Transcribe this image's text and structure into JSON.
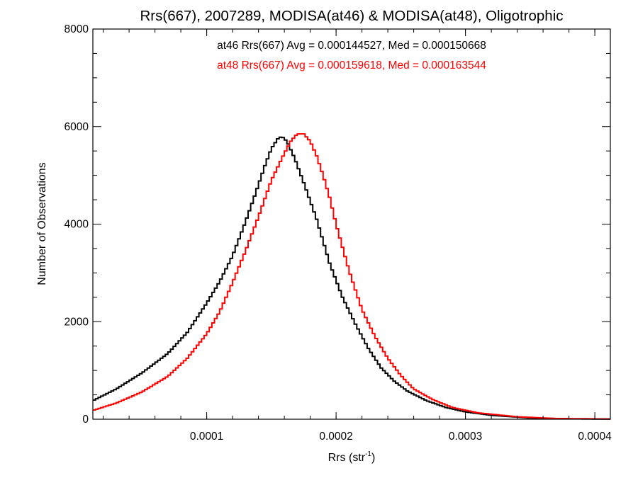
{
  "chart_data": {
    "type": "step-histogram",
    "title": "Rrs(667), 2007289, MODISA(at46) & MODISA(at48), Oligotrophic",
    "xlabel_main": "Rrs (str",
    "xlabel_sup": "-1",
    "xlabel_end": ")",
    "ylabel": "Number of Observations",
    "xlim": [
      1.2e-05,
      0.000412
    ],
    "ylim": [
      0,
      8000
    ],
    "x_ticks": [
      0.0001,
      0.0002,
      0.0003,
      0.0004
    ],
    "x_tick_labels": [
      "0.0001",
      "0.0002",
      "0.0003",
      "0.0004"
    ],
    "y_ticks": [
      0,
      2000,
      4000,
      6000,
      8000
    ],
    "y_tick_labels": [
      "0",
      "2000",
      "4000",
      "6000",
      "8000"
    ],
    "annotations": [
      {
        "text": "at46 Rrs(667) Avg = 0.000144527, Med = 0.000150668",
        "color": "#000000"
      },
      {
        "text": "at48 Rrs(667) Avg = 0.000159618, Med = 0.000163544",
        "color": "#ff0000"
      }
    ],
    "bin_width": 2e-06,
    "series": [
      {
        "color": "#000000",
        "x": [
          1.2e-05,
          3e-05,
          5e-05,
          7e-05,
          8.5e-05,
          0.0001,
          0.00011,
          0.00012,
          0.00013,
          0.000138,
          0.000145,
          0.00015,
          0.000155,
          0.000158,
          0.000162,
          0.000168,
          0.000175,
          0.000185,
          0.000195,
          0.000205,
          0.000215,
          0.000225,
          0.000235,
          0.000245,
          0.000255,
          0.00027,
          0.000285,
          0.0003,
          0.00032,
          0.00035,
          0.00038,
          0.000412
        ],
        "y": [
          380,
          620,
          950,
          1350,
          1780,
          2380,
          2820,
          3350,
          4050,
          4650,
          5200,
          5550,
          5750,
          5800,
          5700,
          5350,
          4850,
          4100,
          3200,
          2500,
          1950,
          1450,
          1050,
          780,
          580,
          380,
          240,
          150,
          80,
          25,
          8,
          3
        ]
      },
      {
        "color": "#ff0000",
        "x": [
          1.2e-05,
          3e-05,
          5e-05,
          7e-05,
          8.5e-05,
          0.0001,
          0.00011,
          0.00012,
          0.00013,
          0.00014,
          0.00015,
          0.00016,
          0.000165,
          0.00017,
          0.000175,
          0.00018,
          0.000185,
          0.00019,
          0.000195,
          0.0002,
          0.00021,
          0.00022,
          0.00023,
          0.00024,
          0.00025,
          0.00026,
          0.000275,
          0.00029,
          0.00031,
          0.00034,
          0.00037,
          0.000412
        ],
        "y": [
          180,
          330,
          560,
          880,
          1250,
          1750,
          2200,
          2800,
          3450,
          4150,
          4900,
          5450,
          5700,
          5850,
          5850,
          5700,
          5400,
          5000,
          4550,
          4000,
          3050,
          2250,
          1700,
          1250,
          900,
          620,
          400,
          240,
          130,
          50,
          15,
          5
        ]
      }
    ]
  }
}
